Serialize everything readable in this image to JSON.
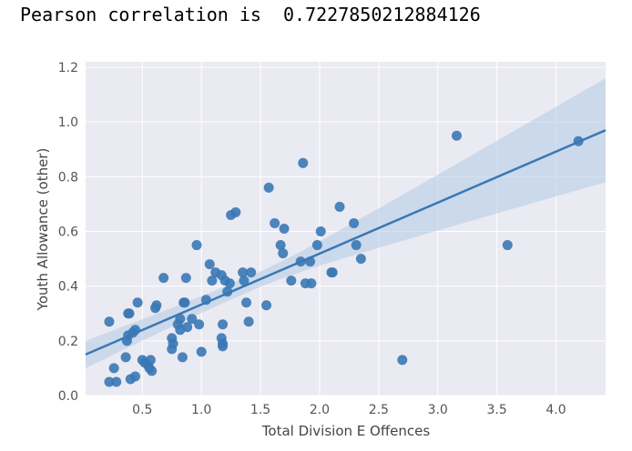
{
  "header": {
    "label": "Pearson correlation is",
    "value": "0.7227850212884126"
  },
  "chart_data": {
    "type": "scatter",
    "title": "",
    "xlabel": "Total Division E Offences",
    "ylabel": "Youth Allowance (other)",
    "xlim": [
      0.02,
      4.42
    ],
    "ylim": [
      0.0,
      1.22
    ],
    "xticks": [
      0.5,
      1.0,
      1.5,
      2.0,
      2.5,
      3.0,
      3.5,
      4.0
    ],
    "yticks": [
      0.0,
      0.2,
      0.4,
      0.6,
      0.8,
      1.0,
      1.2
    ],
    "xtick_labels": [
      "0.5",
      "1.0",
      "1.5",
      "2.0",
      "2.5",
      "3.0",
      "3.5",
      "4.0"
    ],
    "ytick_labels": [
      "0.0",
      "0.2",
      "0.4",
      "0.6",
      "0.8",
      "1.0",
      "1.2"
    ],
    "grid": true,
    "point_color": "#3a78b5",
    "line_color": "#3a78b5",
    "band_color": "#b8cde4",
    "background_color": "#eaeaf2",
    "regression": {
      "x": [
        0.02,
        4.42
      ],
      "y": [
        0.15,
        0.97
      ],
      "ci_lower": [
        0.1,
        0.84
      ],
      "ci_upper": [
        0.2,
        1.16
      ],
      "ci_center_x": 1.45
    },
    "points": {
      "x": [
        0.22,
        0.26,
        0.22,
        0.28,
        0.36,
        0.37,
        0.38,
        0.38,
        0.39,
        0.4,
        0.42,
        0.44,
        0.44,
        0.46,
        0.5,
        0.52,
        0.55,
        0.56,
        0.57,
        0.58,
        0.61,
        0.62,
        0.68,
        0.75,
        0.75,
        0.76,
        0.8,
        0.82,
        0.82,
        0.84,
        0.85,
        0.86,
        0.87,
        0.88,
        0.92,
        0.96,
        0.98,
        1.0,
        1.04,
        1.07,
        1.09,
        1.12,
        1.17,
        1.17,
        1.18,
        1.18,
        1.18,
        1.2,
        1.22,
        1.24,
        1.25,
        1.29,
        1.35,
        1.36,
        1.38,
        1.4,
        1.42,
        1.55,
        1.57,
        1.62,
        1.67,
        1.69,
        1.7,
        1.76,
        1.84,
        1.86,
        1.88,
        1.92,
        1.93,
        1.98,
        2.01,
        2.1,
        2.11,
        2.17,
        2.29,
        2.31,
        2.35,
        2.7,
        3.16,
        3.59,
        4.19
      ],
      "y": [
        0.27,
        0.1,
        0.05,
        0.05,
        0.14,
        0.2,
        0.22,
        0.3,
        0.3,
        0.06,
        0.23,
        0.24,
        0.07,
        0.34,
        0.13,
        0.12,
        0.11,
        0.1,
        0.13,
        0.09,
        0.32,
        0.33,
        0.43,
        0.21,
        0.17,
        0.19,
        0.26,
        0.28,
        0.24,
        0.14,
        0.34,
        0.34,
        0.43,
        0.25,
        0.28,
        0.55,
        0.26,
        0.16,
        0.35,
        0.48,
        0.42,
        0.45,
        0.44,
        0.21,
        0.19,
        0.18,
        0.26,
        0.42,
        0.38,
        0.41,
        0.66,
        0.67,
        0.45,
        0.42,
        0.34,
        0.27,
        0.45,
        0.33,
        0.76,
        0.63,
        0.55,
        0.52,
        0.61,
        0.42,
        0.49,
        0.85,
        0.41,
        0.49,
        0.41,
        0.55,
        0.6,
        0.45,
        0.45,
        0.69,
        0.63,
        0.55,
        0.5,
        0.13,
        0.95,
        0.55,
        0.93
      ]
    }
  }
}
